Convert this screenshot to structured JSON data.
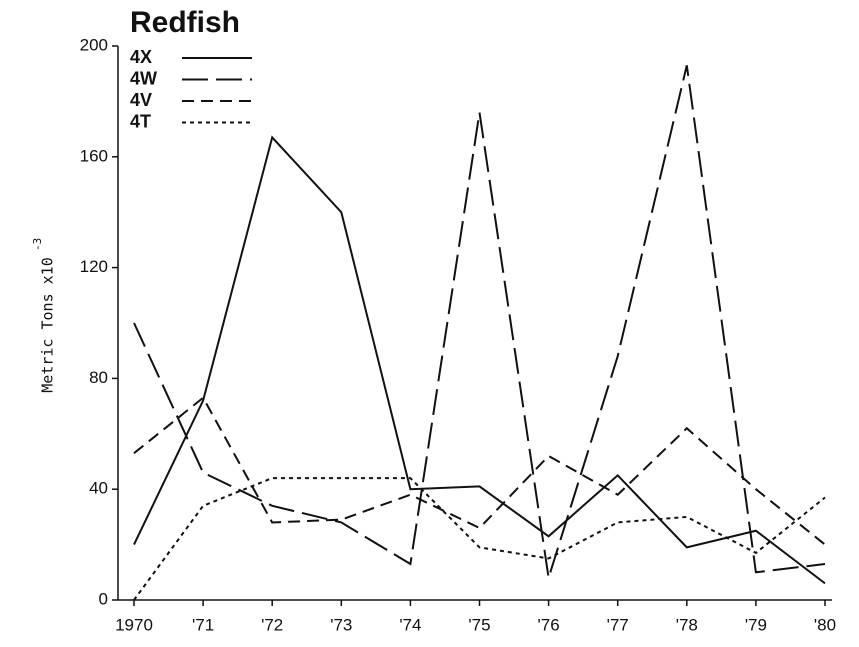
{
  "chart_data": {
    "type": "line",
    "title": "Redfish",
    "y_label": "Metric  Tons  x10",
    "y_label_exponent": "-3",
    "categories": [
      "1970",
      "'71",
      "'72",
      "'73",
      "'74",
      "'75",
      "'76",
      "'77",
      "'78",
      "'79",
      "'80"
    ],
    "series": [
      {
        "name": "4X",
        "color": "#111111",
        "dash": "none",
        "values": [
          20,
          72,
          167,
          140,
          40,
          41,
          23,
          45,
          19,
          25,
          6
        ]
      },
      {
        "name": "4W",
        "color": "#111111",
        "dash": "26 8",
        "values": [
          100,
          46,
          34,
          28,
          13,
          176,
          8,
          88,
          193,
          10,
          13
        ]
      },
      {
        "name": "4V",
        "color": "#111111",
        "dash": "12 7",
        "values": [
          53,
          73,
          28,
          29,
          38,
          26,
          52,
          38,
          62,
          40,
          20
        ]
      },
      {
        "name": "4T",
        "color": "#111111",
        "dash": "4 4",
        "values": [
          0,
          34,
          44,
          44,
          44,
          19,
          15,
          28,
          30,
          17,
          37
        ]
      }
    ],
    "ylim": [
      0,
      200
    ],
    "yticks": [
      0,
      40,
      80,
      120,
      160,
      200
    ],
    "grid": false,
    "legend": "upper left"
  }
}
